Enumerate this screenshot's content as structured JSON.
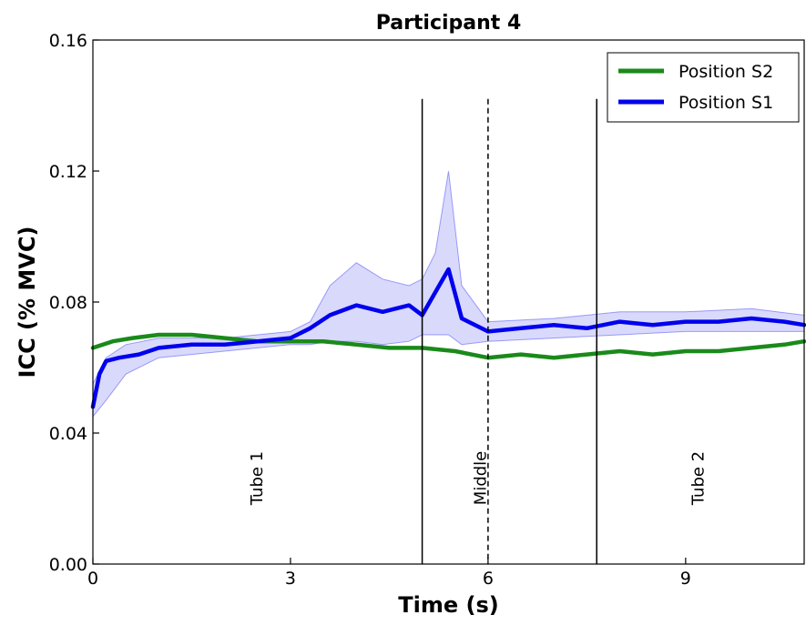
{
  "chart_data": {
    "type": "line",
    "title": "Participant 4",
    "xlabel": "Time (s)",
    "ylabel": "ICC (% MVC)",
    "xlim": [
      0,
      10.8
    ],
    "ylim": [
      0,
      0.16
    ],
    "x_ticks": [
      0,
      3,
      6,
      9
    ],
    "x_tick_labels": [
      "0",
      "3",
      "6",
      "9"
    ],
    "y_ticks": [
      0.0,
      0.04,
      0.08,
      0.12,
      0.16
    ],
    "y_tick_labels": [
      "0.00",
      "0.04",
      "0.08",
      "0.12",
      "0.16"
    ],
    "grid": false,
    "legend": "top-right",
    "series": [
      {
        "name": "Position S2",
        "color": "#1a8a1a",
        "x": [
          0,
          0.3,
          0.6,
          1,
          1.5,
          2,
          2.5,
          3,
          3.5,
          4,
          4.5,
          5,
          5.5,
          6,
          6.5,
          7,
          7.5,
          8,
          8.5,
          9,
          9.5,
          10,
          10.5,
          10.8
        ],
        "y": [
          0.066,
          0.068,
          0.069,
          0.07,
          0.07,
          0.069,
          0.068,
          0.068,
          0.068,
          0.067,
          0.066,
          0.066,
          0.065,
          0.063,
          0.064,
          0.063,
          0.064,
          0.065,
          0.064,
          0.065,
          0.065,
          0.066,
          0.067,
          0.068
        ]
      },
      {
        "name": "Position S1",
        "color": "#0000ee",
        "x": [
          0,
          0.1,
          0.2,
          0.4,
          0.7,
          1,
          1.5,
          2,
          2.5,
          3,
          3.3,
          3.6,
          4,
          4.4,
          4.8,
          5,
          5.2,
          5.4,
          5.6,
          6,
          6.5,
          7,
          7.5,
          8,
          8.5,
          9,
          9.5,
          10,
          10.5,
          10.8
        ],
        "y": [
          0.048,
          0.058,
          0.062,
          0.063,
          0.064,
          0.066,
          0.067,
          0.067,
          0.068,
          0.069,
          0.072,
          0.076,
          0.079,
          0.077,
          0.079,
          0.076,
          0.083,
          0.09,
          0.075,
          0.071,
          0.072,
          0.073,
          0.072,
          0.074,
          0.073,
          0.074,
          0.074,
          0.075,
          0.074,
          0.073
        ]
      }
    ],
    "band": {
      "series": "Position S1",
      "x": [
        0,
        0.2,
        0.5,
        1,
        2,
        3,
        3.3,
        3.6,
        4,
        4.4,
        4.8,
        5,
        5.2,
        5.4,
        5.6,
        6,
        7,
        8,
        9,
        10,
        10.8
      ],
      "lower": [
        0.045,
        0.05,
        0.058,
        0.063,
        0.065,
        0.067,
        0.067,
        0.068,
        0.068,
        0.067,
        0.068,
        0.07,
        0.07,
        0.07,
        0.067,
        0.068,
        0.069,
        0.07,
        0.071,
        0.071,
        0.071
      ],
      "upper": [
        0.055,
        0.063,
        0.067,
        0.069,
        0.069,
        0.071,
        0.074,
        0.085,
        0.092,
        0.087,
        0.085,
        0.087,
        0.095,
        0.12,
        0.085,
        0.074,
        0.075,
        0.077,
        0.077,
        0.078,
        0.076
      ]
    },
    "vertical_lines": [
      {
        "x": 5.0,
        "style": "solid",
        "top": 0.142
      },
      {
        "x": 6.0,
        "style": "dashed",
        "top": 0.142
      },
      {
        "x": 7.65,
        "style": "solid",
        "top": 0.142
      }
    ],
    "annotations": [
      {
        "text": "Tube 1",
        "x": 2.5,
        "y": 0.018
      },
      {
        "text": "Middle",
        "x": 5.9,
        "y": 0.018
      },
      {
        "text": "Tube 2",
        "x": 9.2,
        "y": 0.018
      }
    ]
  }
}
